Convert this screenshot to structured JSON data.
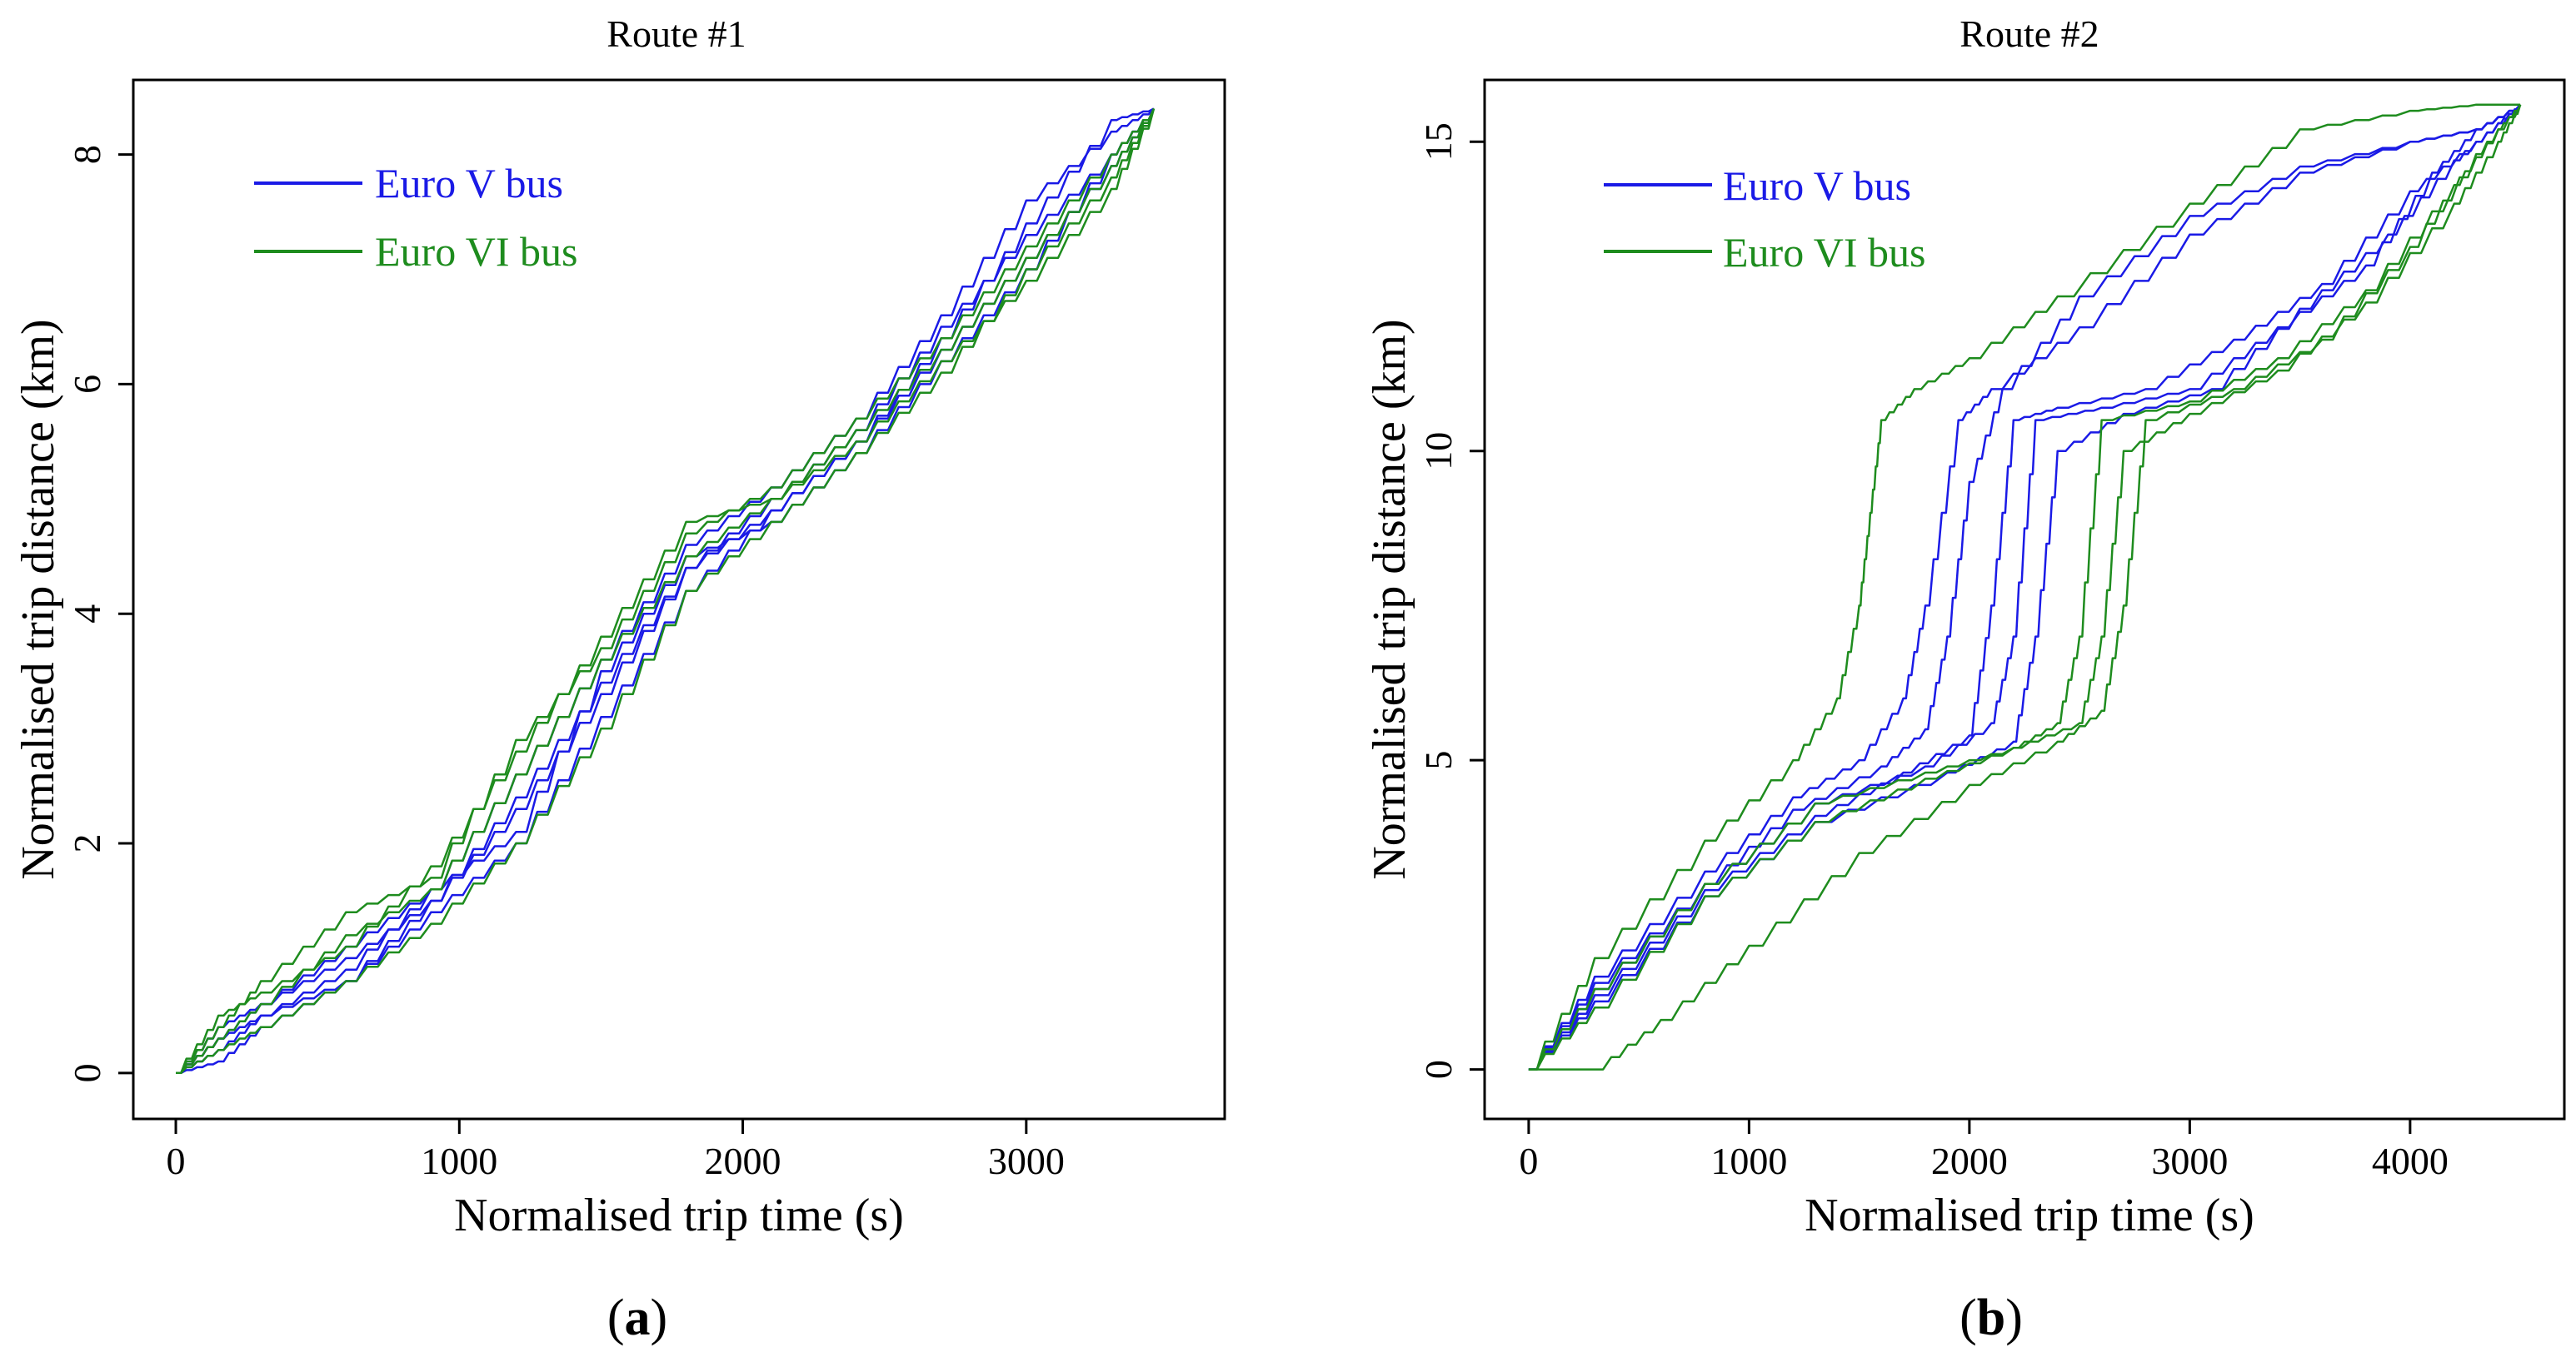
{
  "colors": {
    "euro_v": "#1a1ae6",
    "euro_vi": "#1e8c1e",
    "axis": "#000000"
  },
  "chart_data": [
    {
      "type": "line",
      "panel_label": {
        "open": "(",
        "letter": "a",
        "close": ")"
      },
      "title": "Route #1",
      "xlabel": "Normalised trip time (s)",
      "ylabel": "Normalised trip distance (km)",
      "xlim": [
        -150,
        3700
      ],
      "ylim": [
        -0.4,
        8.65
      ],
      "xticks": [
        0,
        1000,
        2000,
        3000
      ],
      "xtick_labels": [
        "0",
        "1000",
        "2000",
        "3000"
      ],
      "yticks": [
        0,
        2,
        4,
        6,
        8
      ],
      "ytick_labels": [
        "0",
        "2",
        "4",
        "6",
        "8"
      ],
      "grid": false,
      "legend": {
        "position": "top-left",
        "entries": [
          {
            "label": "Euro V bus",
            "color_key": "euro_v"
          },
          {
            "label": "Euro VI bus",
            "color_key": "euro_vi"
          }
        ]
      },
      "series": [
        {
          "name": "Euro V bus",
          "color_key": "euro_v",
          "x": [
            0,
            150,
            300,
            600,
            900,
            1200,
            1500,
            1800,
            2100,
            2400,
            2700,
            3000,
            3300,
            3450
          ],
          "y": [
            0,
            0.1,
            0.4,
            0.8,
            1.5,
            2.4,
            3.4,
            4.4,
            4.9,
            5.5,
            6.4,
            7.4,
            8.3,
            8.4
          ]
        },
        {
          "name": "Euro V bus",
          "color_key": "euro_v",
          "x": [
            0,
            150,
            300,
            600,
            900,
            1200,
            1500,
            1800,
            2100,
            2400,
            2700,
            3000,
            3300,
            3450
          ],
          "y": [
            0,
            0.3,
            0.5,
            0.9,
            1.6,
            2.1,
            3.5,
            4.5,
            4.8,
            5.4,
            6.2,
            7.0,
            8.0,
            8.4
          ]
        },
        {
          "name": "Euro V bus",
          "color_key": "euro_v",
          "x": [
            0,
            150,
            300,
            600,
            900,
            1200,
            1500,
            1800,
            2100,
            2400,
            2700,
            3000,
            3300,
            3450
          ],
          "y": [
            0,
            0.4,
            0.6,
            1.0,
            1.5,
            2.3,
            3.3,
            4.4,
            5.0,
            5.6,
            6.5,
            7.3,
            8.0,
            8.4
          ]
        },
        {
          "name": "Euro V bus",
          "color_key": "euro_v",
          "x": [
            0,
            150,
            300,
            600,
            900,
            1200,
            1500,
            1800,
            2100,
            2400,
            2700,
            3000,
            3300,
            3450
          ],
          "y": [
            0,
            0.2,
            0.5,
            0.8,
            1.4,
            2.0,
            3.1,
            4.2,
            4.9,
            5.5,
            6.3,
            7.1,
            7.9,
            8.4
          ]
        },
        {
          "name": "Euro V bus",
          "color_key": "euro_v",
          "x": [
            0,
            150,
            300,
            600,
            900,
            1200,
            1500,
            1800,
            2100,
            2400,
            2700,
            3000,
            3300,
            3450
          ],
          "y": [
            0,
            0.3,
            0.6,
            1.1,
            1.6,
            2.6,
            3.6,
            4.6,
            5.1,
            5.7,
            6.6,
            7.6,
            8.2,
            8.4
          ]
        },
        {
          "name": "Euro VI bus",
          "color_key": "euro_vi",
          "x": [
            0,
            150,
            300,
            600,
            900,
            1200,
            1500,
            1800,
            2100,
            2400,
            2700,
            3000,
            3300,
            3450
          ],
          "y": [
            0,
            0.4,
            0.8,
            1.4,
            1.7,
            2.9,
            3.7,
            4.7,
            5.1,
            5.7,
            6.4,
            7.2,
            8.0,
            8.4
          ]
        },
        {
          "name": "Euro VI bus",
          "color_key": "euro_vi",
          "x": [
            0,
            150,
            300,
            600,
            900,
            1200,
            1500,
            1800,
            2100,
            2400,
            2700,
            3000,
            3300,
            3450
          ],
          "y": [
            0,
            0.3,
            0.6,
            1.2,
            1.6,
            2.6,
            3.6,
            4.5,
            5.0,
            5.6,
            6.3,
            7.1,
            7.9,
            8.4
          ]
        },
        {
          "name": "Euro VI bus",
          "color_key": "euro_vi",
          "x": [
            0,
            150,
            300,
            600,
            900,
            1200,
            1500,
            1800,
            2100,
            2400,
            2700,
            3000,
            3300,
            3450
          ],
          "y": [
            0,
            0.2,
            0.4,
            0.8,
            1.3,
            2.0,
            3.0,
            4.2,
            4.8,
            5.4,
            6.1,
            7.0,
            7.8,
            8.4
          ]
        },
        {
          "name": "Euro VI bus",
          "color_key": "euro_vi",
          "x": [
            0,
            150,
            300,
            600,
            900,
            1200,
            1500,
            1800,
            2100,
            2400,
            2700,
            3000,
            3300,
            3450
          ],
          "y": [
            0,
            0.5,
            0.7,
            1.1,
            1.8,
            2.8,
            3.8,
            4.8,
            5.0,
            5.5,
            6.2,
            6.9,
            7.7,
            8.4
          ]
        }
      ]
    },
    {
      "type": "line",
      "panel_label": {
        "open": "(",
        "letter": "b",
        "close": ")"
      },
      "title": "Route #2",
      "xlabel": "Normalised trip time (s)",
      "ylabel": "Normalised trip distance (km)",
      "xlim": [
        -200,
        4700
      ],
      "ylim": [
        -0.8,
        16.0
      ],
      "xticks": [
        0,
        1000,
        2000,
        3000,
        4000
      ],
      "xtick_labels": [
        "0",
        "1000",
        "2000",
        "3000",
        "4000"
      ],
      "yticks": [
        0,
        5,
        10,
        15
      ],
      "ytick_labels": [
        "0",
        "5",
        "10",
        "15"
      ],
      "grid": false,
      "legend": {
        "position": "top-left",
        "entries": [
          {
            "label": "Euro V bus",
            "color_key": "euro_v"
          },
          {
            "label": "Euro VI bus",
            "color_key": "euro_vi"
          }
        ]
      },
      "series": [
        {
          "name": "Euro V bus",
          "color_key": "euro_v",
          "x": [
            0,
            300,
            800,
            1200,
            1500,
            1700,
            1800,
            1950,
            2100,
            2500,
            3000,
            3500,
            4000,
            4300,
            4500
          ],
          "y": [
            0,
            1.5,
            3.2,
            4.4,
            5.0,
            6.0,
            7.5,
            10.5,
            11.0,
            12.0,
            13.5,
            14.5,
            15.0,
            15.2,
            15.6
          ]
        },
        {
          "name": "Euro V bus",
          "color_key": "euro_v",
          "x": [
            0,
            300,
            800,
            1200,
            1600,
            1800,
            1900,
            2000,
            2150,
            2500,
            3000,
            3500,
            4000,
            4300,
            4500
          ],
          "y": [
            0,
            1.4,
            3.0,
            4.2,
            4.9,
            5.5,
            7.0,
            9.5,
            11.0,
            12.5,
            13.8,
            14.6,
            15.0,
            15.2,
            15.6
          ]
        },
        {
          "name": "Euro V bus",
          "color_key": "euro_v",
          "x": [
            0,
            300,
            800,
            1300,
            1700,
            2000,
            2100,
            2200,
            2400,
            2800,
            3200,
            3600,
            4000,
            4300,
            4500
          ],
          "y": [
            0,
            1.2,
            2.9,
            4.1,
            4.8,
            5.4,
            7.5,
            10.5,
            10.7,
            11.0,
            11.8,
            12.7,
            14.2,
            15.0,
            15.6
          ]
        },
        {
          "name": "Euro V bus",
          "color_key": "euro_v",
          "x": [
            0,
            300,
            800,
            1300,
            1800,
            2100,
            2200,
            2300,
            2600,
            3000,
            3400,
            3800,
            4100,
            4300,
            4500
          ],
          "y": [
            0,
            1.3,
            3.0,
            4.3,
            4.9,
            5.6,
            7.0,
            10.5,
            10.7,
            11.0,
            12.0,
            13.0,
            14.5,
            15.2,
            15.6
          ]
        },
        {
          "name": "Euro V bus",
          "color_key": "euro_v",
          "x": [
            0,
            300,
            800,
            1300,
            1900,
            2200,
            2300,
            2400,
            2700,
            3100,
            3500,
            3900,
            4200,
            4400,
            4500
          ],
          "y": [
            0,
            1.1,
            2.8,
            4.0,
            4.8,
            5.3,
            7.0,
            10.0,
            10.6,
            11.0,
            12.3,
            13.5,
            14.7,
            15.3,
            15.6
          ]
        },
        {
          "name": "Euro VI bus",
          "color_key": "euro_vi",
          "x": [
            0,
            300,
            800,
            1200,
            1400,
            1500,
            1550,
            1600,
            1750,
            2000,
            2400,
            3000,
            3500,
            4000,
            4300,
            4500
          ],
          "y": [
            0,
            1.8,
            3.7,
            5.0,
            6.0,
            7.5,
            9.0,
            10.5,
            11.0,
            11.5,
            12.5,
            14.0,
            15.2,
            15.5,
            15.6,
            15.6
          ]
        },
        {
          "name": "Euro VI bus",
          "color_key": "euro_vi",
          "x": [
            0,
            300,
            800,
            1300,
            1800,
            2200,
            2400,
            2500,
            2600,
            3000,
            3400,
            3800,
            4200,
            4400,
            4500
          ],
          "y": [
            0,
            1.3,
            3.0,
            4.3,
            4.8,
            5.2,
            5.6,
            7.0,
            10.5,
            10.8,
            11.5,
            12.6,
            14.3,
            15.2,
            15.6
          ]
        },
        {
          "name": "Euro VI bus",
          "color_key": "euro_vi",
          "x": [
            0,
            300,
            800,
            1300,
            1800,
            2200,
            2500,
            2600,
            2700,
            3000,
            3400,
            3800,
            4200,
            4400,
            4500
          ],
          "y": [
            0,
            1.0,
            2.8,
            4.0,
            4.7,
            5.2,
            5.6,
            7.0,
            10.0,
            10.6,
            11.3,
            12.4,
            14.0,
            15.0,
            15.6
          ]
        },
        {
          "name": "Euro VI bus",
          "color_key": "euro_vi",
          "x": [
            0,
            300,
            600,
            1000,
            1500,
            2000,
            2400,
            2600,
            2700,
            2800,
            3200,
            3600,
            4000,
            4300,
            4500
          ],
          "y": [
            0,
            0,
            0.8,
            2.0,
            3.5,
            4.6,
            5.3,
            5.8,
            7.5,
            10.5,
            11.0,
            11.8,
            13.3,
            14.8,
            15.6
          ]
        }
      ]
    }
  ]
}
